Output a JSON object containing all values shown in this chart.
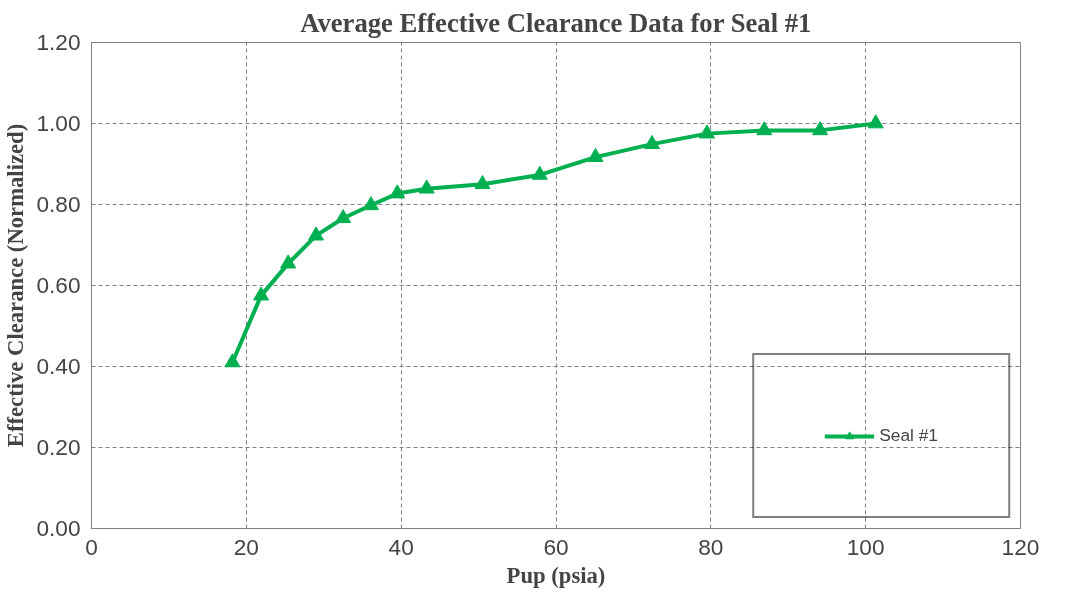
{
  "chart_data": {
    "type": "line",
    "title": "Average Effective Clearance Data for Seal #1",
    "xlabel": "Pup (psia)",
    "ylabel": "Effective Clearance (Normalized)",
    "xlim": [
      0,
      120
    ],
    "xticks": [
      0,
      20,
      40,
      60,
      80,
      100,
      120
    ],
    "ylim": [
      0,
      1.2
    ],
    "yticks": [
      {
        "value": 0,
        "label": "0.00"
      },
      {
        "value": 0.2,
        "label": "0.20"
      },
      {
        "value": 0.4,
        "label": "0.40"
      },
      {
        "value": 0.6,
        "label": "0.60"
      },
      {
        "value": 0.8,
        "label": "0.80"
      },
      {
        "value": 1.0,
        "label": "1.00"
      },
      {
        "value": 1.2,
        "label": "1.20"
      }
    ],
    "grid": true,
    "legend": "bottom right",
    "marker": "triangle",
    "line_style": "solid",
    "series": [
      {
        "name": "Seal #1",
        "color": "#00b050",
        "x": [
          18.2,
          21.9,
          25.4,
          29.0,
          32.5,
          36.1,
          39.5,
          43.3,
          50.5,
          57.9,
          65.1,
          72.4,
          79.5,
          86.9,
          94.1,
          101.3
        ],
        "values": [
          0.41,
          0.575,
          0.654,
          0.723,
          0.766,
          0.798,
          0.827,
          0.839,
          0.85,
          0.873,
          0.917,
          0.949,
          0.975,
          0.983,
          0.983,
          1.0
        ]
      }
    ]
  }
}
